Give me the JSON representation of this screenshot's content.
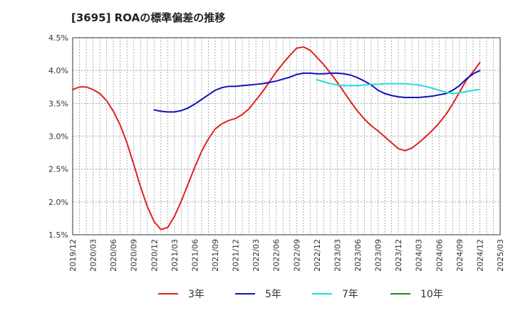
{
  "chart_data": {
    "type": "line",
    "title": "[3695]  ROAの標準偏差の推移",
    "xlabel": "",
    "ylabel": "",
    "ylim": [
      1.5,
      4.5
    ],
    "xlim": [
      "2019/12",
      "2025/03"
    ],
    "y_ticks": [
      "1.5%",
      "2.0%",
      "2.5%",
      "3.0%",
      "3.5%",
      "4.0%",
      "4.5%"
    ],
    "x_ticks": [
      "2019/12",
      "2020/03",
      "2020/06",
      "2020/09",
      "2020/12",
      "2021/03",
      "2021/06",
      "2021/09",
      "2021/12",
      "2022/03",
      "2022/06",
      "2022/09",
      "2022/12",
      "2023/03",
      "2023/06",
      "2023/09",
      "2023/12",
      "2024/03",
      "2024/06",
      "2024/09",
      "2024/12",
      "2025/03"
    ],
    "grid": true,
    "legend_position": "bottom",
    "series": [
      {
        "name": "3年",
        "color": "#dd2222",
        "x": [
          "2019/12",
          "2020/01",
          "2020/02",
          "2020/03",
          "2020/04",
          "2020/05",
          "2020/06",
          "2020/07",
          "2020/08",
          "2020/09",
          "2020/10",
          "2020/11",
          "2020/12",
          "2021/01",
          "2021/02",
          "2021/03",
          "2021/04",
          "2021/05",
          "2021/06",
          "2021/07",
          "2021/08",
          "2021/09",
          "2021/10",
          "2021/11",
          "2021/12",
          "2022/01",
          "2022/02",
          "2022/03",
          "2022/04",
          "2022/05",
          "2022/06",
          "2022/07",
          "2022/08",
          "2022/09",
          "2022/10",
          "2022/11",
          "2022/12",
          "2023/01",
          "2023/02",
          "2023/03",
          "2023/04",
          "2023/05",
          "2023/06",
          "2023/07",
          "2023/08",
          "2023/09",
          "2023/10",
          "2023/11",
          "2023/12",
          "2024/01",
          "2024/02",
          "2024/03",
          "2024/04",
          "2024/05",
          "2024/06",
          "2024/07",
          "2024/08",
          "2024/09",
          "2024/10",
          "2024/11",
          "2024/12"
        ],
        "values": [
          3.71,
          3.75,
          3.75,
          3.71,
          3.65,
          3.54,
          3.38,
          3.17,
          2.9,
          2.57,
          2.23,
          1.93,
          1.7,
          1.58,
          1.61,
          1.78,
          2.01,
          2.27,
          2.53,
          2.77,
          2.96,
          3.11,
          3.19,
          3.24,
          3.27,
          3.33,
          3.42,
          3.55,
          3.68,
          3.83,
          3.98,
          4.11,
          4.23,
          4.34,
          4.36,
          4.31,
          4.2,
          4.09,
          3.96,
          3.82,
          3.67,
          3.52,
          3.38,
          3.26,
          3.16,
          3.08,
          2.99,
          2.9,
          2.81,
          2.78,
          2.82,
          2.9,
          2.99,
          3.09,
          3.2,
          3.33,
          3.49,
          3.67,
          3.85,
          3.98,
          4.12
        ]
      },
      {
        "name": "5年",
        "color": "#1111bb",
        "x": [
          "2020/12",
          "2021/01",
          "2021/02",
          "2021/03",
          "2021/04",
          "2021/05",
          "2021/06",
          "2021/07",
          "2021/08",
          "2021/09",
          "2021/10",
          "2021/11",
          "2021/12",
          "2022/01",
          "2022/02",
          "2022/03",
          "2022/04",
          "2022/05",
          "2022/06",
          "2022/07",
          "2022/08",
          "2022/09",
          "2022/10",
          "2022/11",
          "2022/12",
          "2023/01",
          "2023/02",
          "2023/03",
          "2023/04",
          "2023/05",
          "2023/06",
          "2023/07",
          "2023/08",
          "2023/09",
          "2023/10",
          "2023/11",
          "2023/12",
          "2024/01",
          "2024/02",
          "2024/03",
          "2024/04",
          "2024/05",
          "2024/06",
          "2024/07",
          "2024/08",
          "2024/09",
          "2024/10",
          "2024/11",
          "2024/12"
        ],
        "values": [
          3.4,
          3.38,
          3.37,
          3.37,
          3.39,
          3.43,
          3.49,
          3.56,
          3.63,
          3.7,
          3.74,
          3.76,
          3.76,
          3.77,
          3.78,
          3.79,
          3.8,
          3.82,
          3.84,
          3.87,
          3.9,
          3.94,
          3.96,
          3.96,
          3.95,
          3.95,
          3.96,
          3.96,
          3.95,
          3.93,
          3.89,
          3.84,
          3.78,
          3.7,
          3.65,
          3.62,
          3.6,
          3.59,
          3.59,
          3.59,
          3.6,
          3.61,
          3.63,
          3.65,
          3.7,
          3.77,
          3.87,
          3.95,
          4.0
        ]
      },
      {
        "name": "7年",
        "color": "#22dddd",
        "x": [
          "2022/12",
          "2023/01",
          "2023/02",
          "2023/03",
          "2023/04",
          "2023/05",
          "2023/06",
          "2023/07",
          "2023/08",
          "2023/09",
          "2023/10",
          "2023/11",
          "2023/12",
          "2024/01",
          "2024/02",
          "2024/03",
          "2024/04",
          "2024/05",
          "2024/06",
          "2024/07",
          "2024/08",
          "2024/09",
          "2024/10",
          "2024/11",
          "2024/12"
        ],
        "values": [
          3.86,
          3.83,
          3.8,
          3.78,
          3.77,
          3.77,
          3.77,
          3.78,
          3.79,
          3.79,
          3.8,
          3.8,
          3.8,
          3.8,
          3.79,
          3.78,
          3.76,
          3.73,
          3.7,
          3.67,
          3.65,
          3.66,
          3.68,
          3.7,
          3.71
        ]
      },
      {
        "name": "10年",
        "color": "#228822",
        "x": [],
        "values": []
      }
    ]
  }
}
